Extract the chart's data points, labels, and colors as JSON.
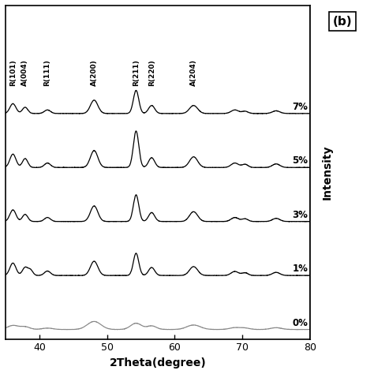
{
  "xlabel": "2Theta(degree)",
  "ylabel": "Intensity",
  "xmin": 35,
  "xmax": 80,
  "samples": [
    "0%",
    "1%",
    "3%",
    "5%",
    "7%"
  ],
  "colors": [
    "#888888",
    "#000000",
    "#000000",
    "#000000",
    "#000000"
  ],
  "offsets": [
    0.0,
    0.17,
    0.34,
    0.51,
    0.68
  ],
  "scale": 0.14,
  "background_color": "#ffffff",
  "panel_label": "(b)",
  "xticks": [
    40,
    50,
    60,
    70,
    80
  ],
  "peak_labels": [
    "R(101)",
    "A(004)",
    "R(111)",
    "A(200)",
    "R(211)",
    "R(220)",
    "A(204)"
  ],
  "peak_positions": [
    36.1,
    37.9,
    41.2,
    48.1,
    54.3,
    56.6,
    62.8
  ]
}
